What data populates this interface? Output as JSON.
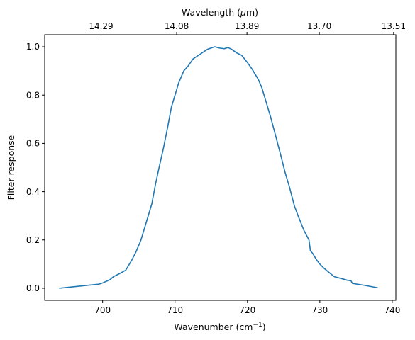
{
  "chart_data": {
    "type": "line",
    "xlabel": "Wavenumber (cm",
    "xlabel_sup": "−1",
    "xlabel_tail": ")",
    "x2label_prefix": "Wavelength (",
    "x2label_mu": "μ",
    "x2label_suffix": "m)",
    "ylabel": "Filter response",
    "xlim": [
      692,
      740.5
    ],
    "ylim": [
      -0.05,
      1.05
    ],
    "xticks": [
      700,
      710,
      720,
      730,
      740
    ],
    "xtick_labels": [
      "700",
      "710",
      "720",
      "730",
      "740"
    ],
    "yticks": [
      0.0,
      0.2,
      0.4,
      0.6,
      0.8,
      1.0
    ],
    "ytick_labels": [
      "0.0",
      "0.2",
      "0.4",
      "0.6",
      "0.8",
      "1.0"
    ],
    "x2ticks_wavenumber": [
      699.79,
      710.23,
      719.94,
      729.93,
      740.19
    ],
    "x2tick_labels": [
      "14.29",
      "14.08",
      "13.89",
      "13.70",
      "13.51"
    ],
    "grid": false,
    "legend": "none",
    "color": "#1f77b4",
    "series": [
      {
        "x": [
          694,
          699.5,
          700,
          701,
          701.5,
          702.5,
          703.2,
          704,
          704.6,
          705.3,
          706,
          706.8,
          707.3,
          707.8,
          708.4,
          709,
          709.5,
          710,
          710.5,
          711.2,
          711.8,
          712.5,
          713.5,
          714.5,
          715.5,
          716.1,
          716.8,
          717.3,
          717.8,
          718.5,
          719.2,
          720,
          720.7,
          721.5,
          722,
          722.5,
          723.2,
          724,
          724.7,
          725.2,
          725.8,
          726.5,
          727,
          727.8,
          728.5,
          728.7,
          729,
          729.5,
          730,
          730.5,
          731,
          731.5,
          732,
          733,
          733.8,
          734.3,
          734.5,
          736,
          738
        ],
        "y": [
          0.0,
          0.017,
          0.022,
          0.035,
          0.048,
          0.063,
          0.075,
          0.115,
          0.15,
          0.2,
          0.27,
          0.35,
          0.43,
          0.5,
          0.58,
          0.67,
          0.75,
          0.8,
          0.85,
          0.9,
          0.92,
          0.95,
          0.97,
          0.99,
          1.0,
          0.995,
          0.992,
          0.997,
          0.99,
          0.975,
          0.965,
          0.935,
          0.905,
          0.865,
          0.83,
          0.78,
          0.71,
          0.62,
          0.54,
          0.48,
          0.42,
          0.34,
          0.3,
          0.24,
          0.2,
          0.155,
          0.145,
          0.12,
          0.1,
          0.085,
          0.072,
          0.06,
          0.048,
          0.04,
          0.033,
          0.031,
          0.02,
          0.013,
          0.002
        ]
      }
    ]
  }
}
